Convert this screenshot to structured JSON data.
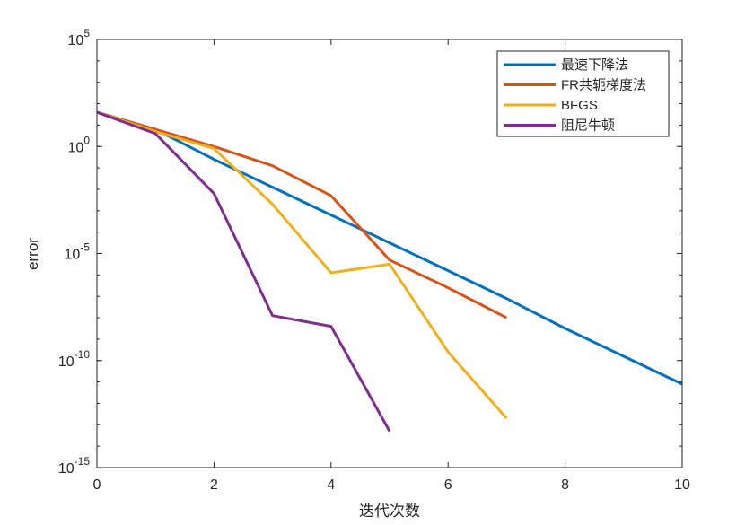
{
  "chart_data": {
    "type": "line",
    "xlabel": "迭代次数",
    "ylabel": "error",
    "yscale": "log",
    "xlim": [
      0,
      10
    ],
    "ylim_exponents": [
      -15,
      5
    ],
    "xticks": [
      0,
      2,
      4,
      6,
      8,
      10
    ],
    "yticks": [
      {
        "base": "10",
        "exp": "-15"
      },
      {
        "base": "10",
        "exp": "-10"
      },
      {
        "base": "10",
        "exp": "-5"
      },
      {
        "base": "10",
        "exp": "0"
      },
      {
        "base": "10",
        "exp": "5"
      }
    ],
    "grid": false,
    "legend_position": "top-right",
    "series": [
      {
        "name": "最速下降法",
        "color": "#0072BD",
        "x": [
          0,
          1,
          2,
          3,
          4,
          5,
          6,
          7,
          8,
          9,
          10
        ],
        "log10_y": [
          1.6,
          0.8,
          -0.6,
          -1.9,
          -3.2,
          -4.5,
          -5.8,
          -7.1,
          -8.5,
          -9.8,
          -11.1
        ]
      },
      {
        "name": "FR共轭梯度法",
        "color": "#D95319",
        "x": [
          0,
          1,
          2,
          3,
          4,
          5,
          6,
          7
        ],
        "log10_y": [
          1.6,
          0.8,
          0.0,
          -0.9,
          -2.3,
          -5.3,
          -6.6,
          -8.0
        ]
      },
      {
        "name": "BFGS",
        "color": "#EDB120",
        "x": [
          0,
          1,
          2,
          3,
          4,
          5,
          6,
          7
        ],
        "log10_y": [
          1.6,
          0.7,
          -0.1,
          -2.7,
          -5.9,
          -5.5,
          -9.6,
          -12.7
        ]
      },
      {
        "name": "阻尼牛顿",
        "color": "#7E2F8E",
        "x": [
          0,
          1,
          2,
          3,
          4,
          5
        ],
        "log10_y": [
          1.6,
          0.6,
          -2.2,
          -7.9,
          -8.4,
          -13.3
        ]
      }
    ]
  }
}
